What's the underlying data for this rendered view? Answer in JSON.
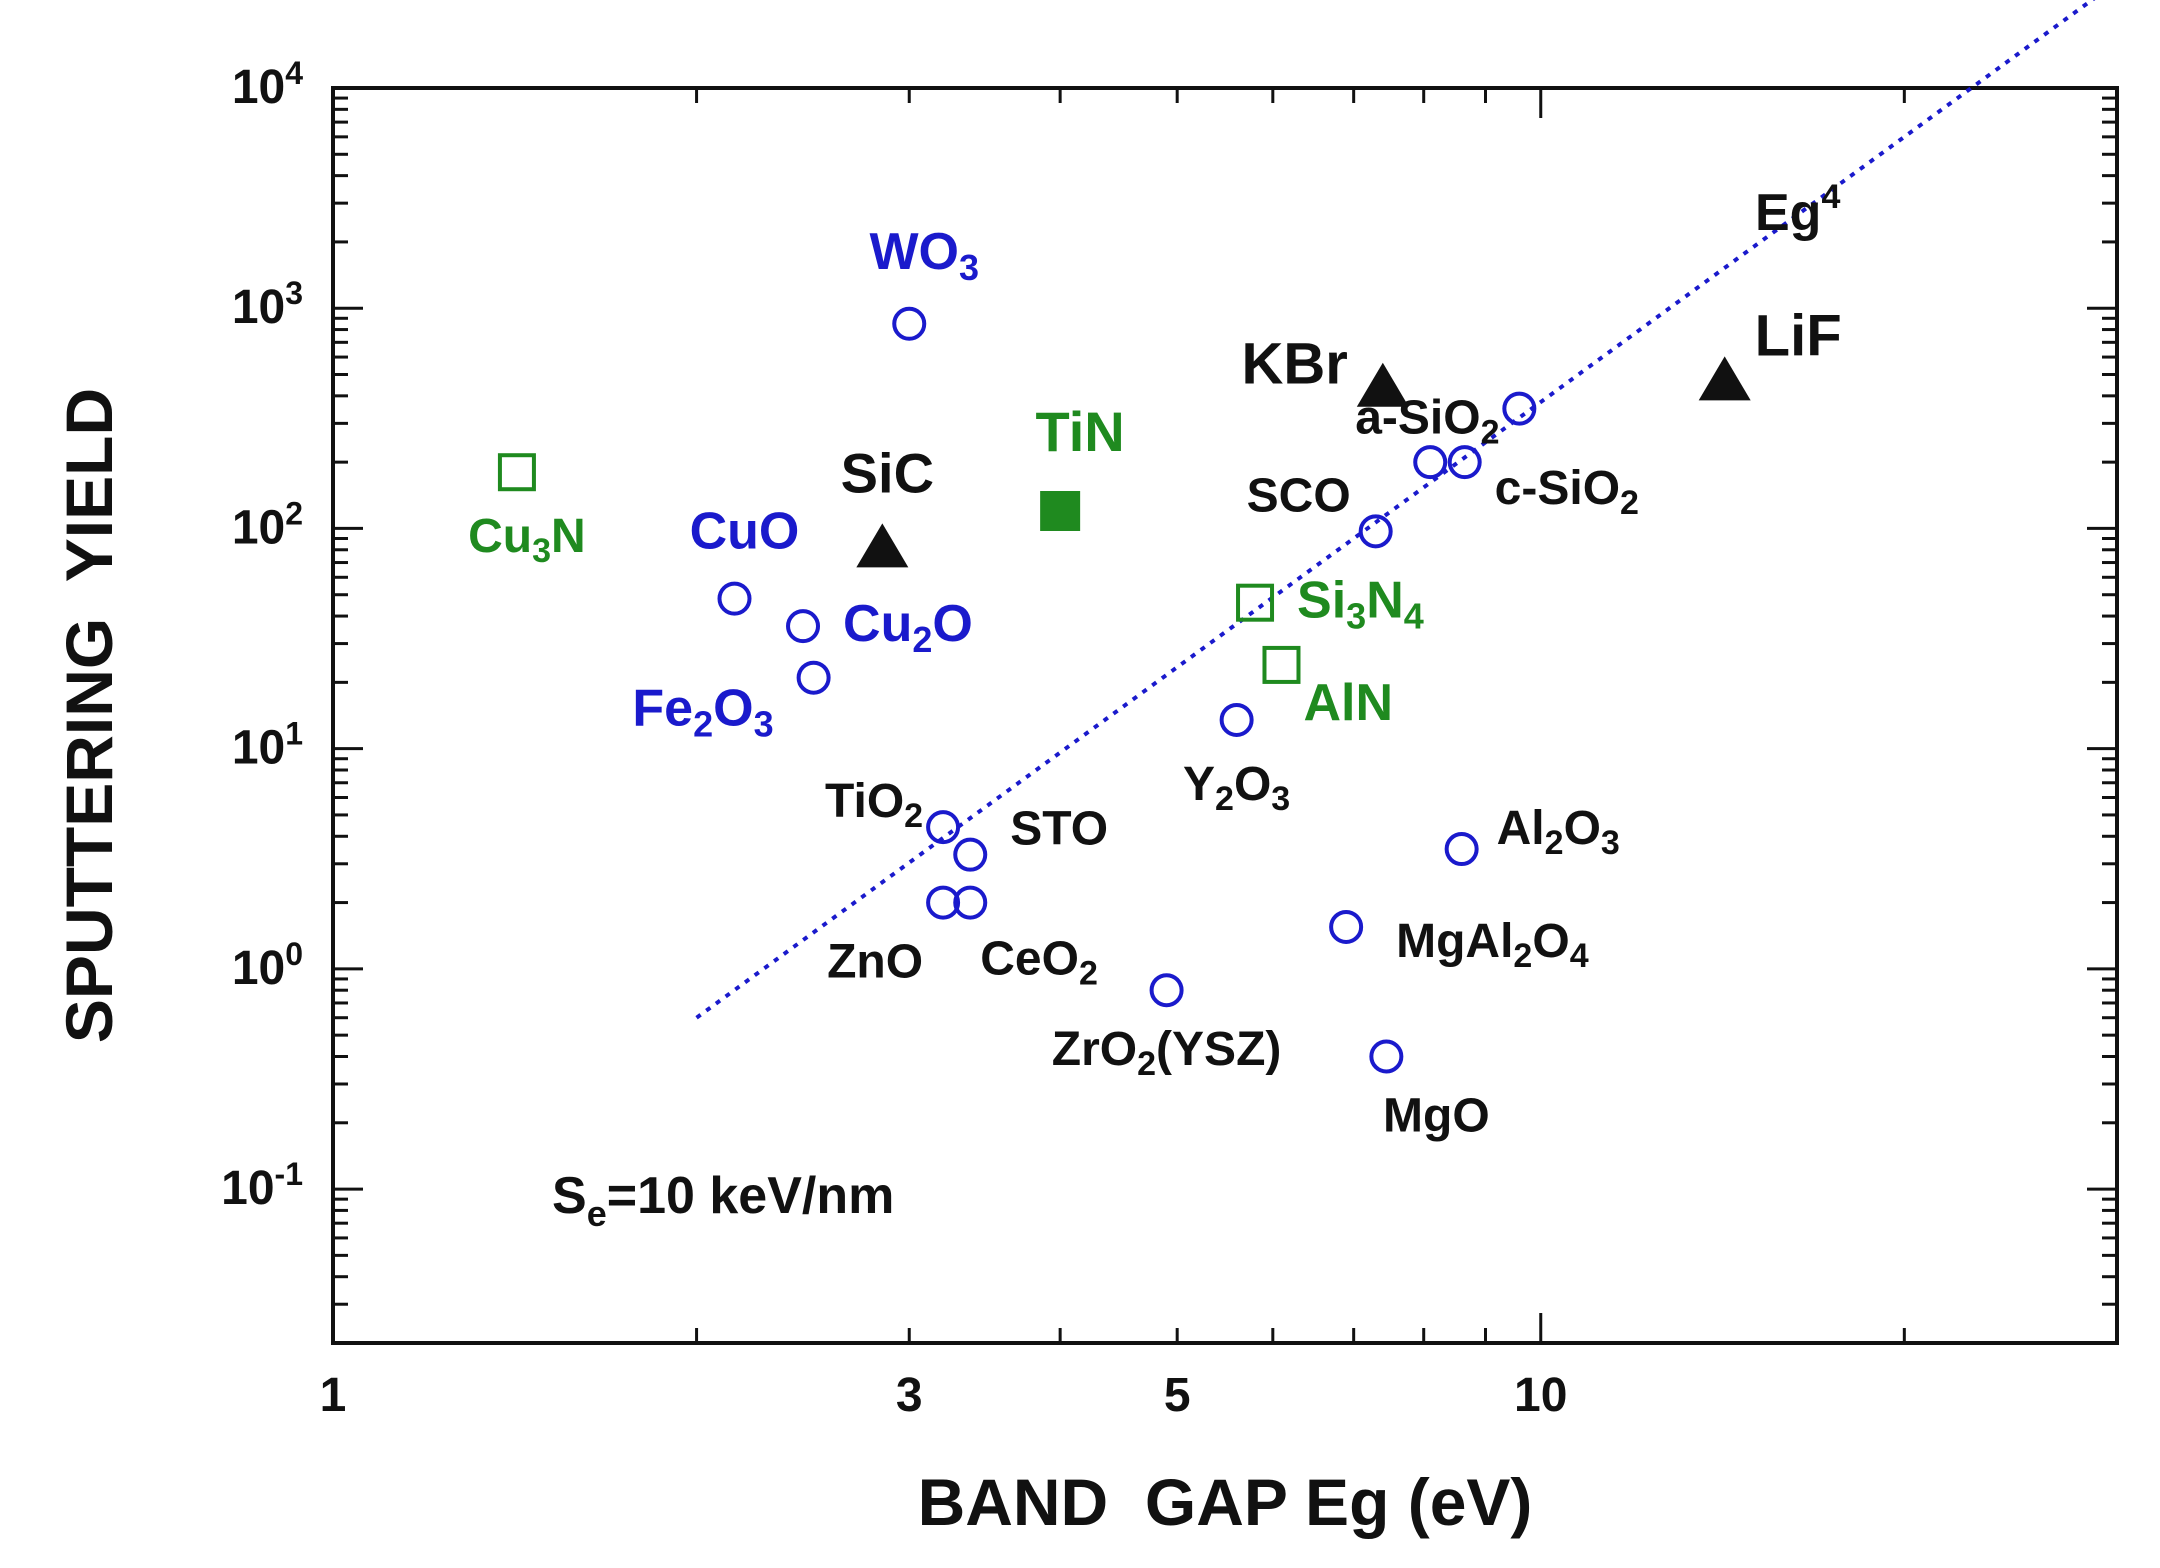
{
  "chart_data": {
    "type": "scatter",
    "title": "",
    "xlabel": "BAND  GAP Eg (eV)",
    "ylabel": "SPUTTERING  YIELD",
    "x_scale": "log",
    "y_scale": "log",
    "xlim": [
      1,
      30
    ],
    "ylim": [
      0.02,
      10000
    ],
    "x_ticks": [
      {
        "value": 1,
        "label": "1"
      },
      {
        "value": 3,
        "label": "3"
      },
      {
        "value": 5,
        "label": "5"
      },
      {
        "value": 10,
        "label": "10"
      }
    ],
    "y_ticks": [
      {
        "value": 0.1,
        "base": "10",
        "exp": "-1"
      },
      {
        "value": 1,
        "base": "10",
        "exp": "0"
      },
      {
        "value": 10,
        "base": "10",
        "exp": "1"
      },
      {
        "value": 100,
        "base": "10",
        "exp": "2"
      },
      {
        "value": 1000,
        "base": "10",
        "exp": "3"
      },
      {
        "value": 10000,
        "base": "10",
        "exp": "4"
      }
    ],
    "colors": {
      "blue": "#1a1acc",
      "green": "#1f8a1f",
      "black": "#111111"
    },
    "condition": {
      "main": "S",
      "sub": "e",
      "rest": "=10 keV/nm"
    },
    "fit_line": {
      "label": "Eg",
      "exp": "4",
      "x_start": 2.0,
      "y_start": 0.6,
      "power": 4,
      "color": "#1a1acc"
    },
    "series": [
      {
        "marker": "open-circle",
        "color": "#1a1acc",
        "points": [
          {
            "x": 3.0,
            "y": 850,
            "label": [
              "W",
              "O",
              "3"
            ],
            "label_color": "#1a1acc"
          },
          {
            "x": 2.15,
            "y": 48,
            "label": [
              "CuO"
            ],
            "label_color": "#1a1acc"
          },
          {
            "x": 2.45,
            "y": 36,
            "label": [
              "Cu",
              "2",
              "O"
            ],
            "label_color": "#1a1acc"
          },
          {
            "x": 2.5,
            "y": 21,
            "label": [
              "Fe",
              "2",
              "O",
              "3"
            ],
            "label_color": "#1a1acc"
          },
          {
            "x": 3.2,
            "y": 4.4,
            "label": [
              "TiO",
              "2"
            ],
            "label_color": "#111111"
          },
          {
            "x": 3.37,
            "y": 3.3,
            "label": [
              "STO"
            ],
            "label_color": "#111111"
          },
          {
            "x": 3.2,
            "y": 2.0,
            "label": [
              "ZnO"
            ],
            "label_color": "#111111"
          },
          {
            "x": 3.37,
            "y": 2.0,
            "label": [
              "CeO",
              "2"
            ],
            "label_color": "#111111"
          },
          {
            "x": 4.9,
            "y": 0.8,
            "label": [
              "ZrO",
              "2",
              "(YSZ)"
            ],
            "label_color": "#111111"
          },
          {
            "x": 5.6,
            "y": 13.5,
            "label": [
              "Y",
              "2",
              "O",
              "3"
            ],
            "label_color": "#111111"
          },
          {
            "x": 7.3,
            "y": 97,
            "label": [
              "SCO"
            ],
            "label_color": "#111111"
          },
          {
            "x": 8.1,
            "y": 200,
            "label": [],
            "label_color": "#111111"
          },
          {
            "x": 8.65,
            "y": 200,
            "label": [
              "c-SiO",
              "2"
            ],
            "label_color": "#111111"
          },
          {
            "x": 9.6,
            "y": 350,
            "label": [
              "a-SiO",
              "2"
            ],
            "label_color": "#111111"
          },
          {
            "x": 8.6,
            "y": 3.5,
            "label": [
              "Al",
              "2",
              "O",
              "3"
            ],
            "label_color": "#111111"
          },
          {
            "x": 6.9,
            "y": 1.55,
            "label": [
              "MgAl",
              "2",
              "O",
              "4"
            ],
            "label_color": "#111111"
          },
          {
            "x": 7.45,
            "y": 0.4,
            "label": [
              "MgO"
            ],
            "label_color": "#111111"
          }
        ]
      },
      {
        "marker": "open-square",
        "color": "#1f8a1f",
        "points": [
          {
            "x": 1.42,
            "y": 180,
            "label": [
              "Cu",
              "3",
              "N"
            ],
            "label_color": "#1f8a1f"
          },
          {
            "x": 5.8,
            "y": 46,
            "label": [
              "Si",
              "3",
              "N",
              "4"
            ],
            "label_color": "#1f8a1f"
          },
          {
            "x": 6.1,
            "y": 24,
            "label": [
              "AlN"
            ],
            "label_color": "#1f8a1f"
          }
        ]
      },
      {
        "marker": "filled-square",
        "color": "#1f8a1f",
        "points": [
          {
            "x": 4.0,
            "y": 120,
            "label": [
              "TiN"
            ],
            "label_color": "#1f8a1f"
          }
        ]
      },
      {
        "marker": "filled-triangle",
        "color": "#111111",
        "points": [
          {
            "x": 2.85,
            "y": 82,
            "label": [
              "SiC"
            ],
            "label_color": "#111111"
          },
          {
            "x": 7.4,
            "y": 440,
            "label": [
              "KBr"
            ],
            "label_color": "#111111"
          },
          {
            "x": 14.2,
            "y": 470,
            "label": [
              "LiF"
            ],
            "label_color": "#111111"
          }
        ]
      }
    ]
  }
}
